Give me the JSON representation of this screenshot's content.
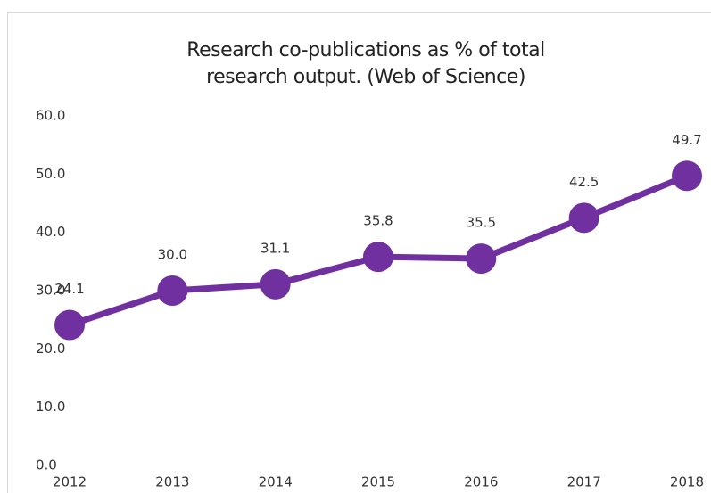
{
  "chart_data": {
    "type": "line",
    "title": "Research co-publications as % of total research output. (Web of Science)",
    "categories": [
      "2012",
      "2013",
      "2014",
      "2015",
      "2016",
      "2017",
      "2018"
    ],
    "values": [
      24.1,
      30.0,
      31.1,
      35.8,
      35.5,
      42.5,
      49.7
    ],
    "value_labels": [
      "24.1",
      "30.0",
      "31.1",
      "35.8",
      "35.5",
      "42.5",
      "49.7"
    ],
    "color": "#7030a0",
    "ylim": [
      0,
      60
    ],
    "yticks": [
      {
        "value": 0,
        "label": "0.0"
      },
      {
        "value": 10,
        "label": "10.0"
      },
      {
        "value": 20,
        "label": "20.0"
      },
      {
        "value": 30,
        "label": "30.0"
      },
      {
        "value": 40,
        "label": "40.0"
      },
      {
        "value": 50,
        "label": "50.0"
      },
      {
        "value": 60,
        "label": "60.0"
      }
    ],
    "grid": false
  }
}
